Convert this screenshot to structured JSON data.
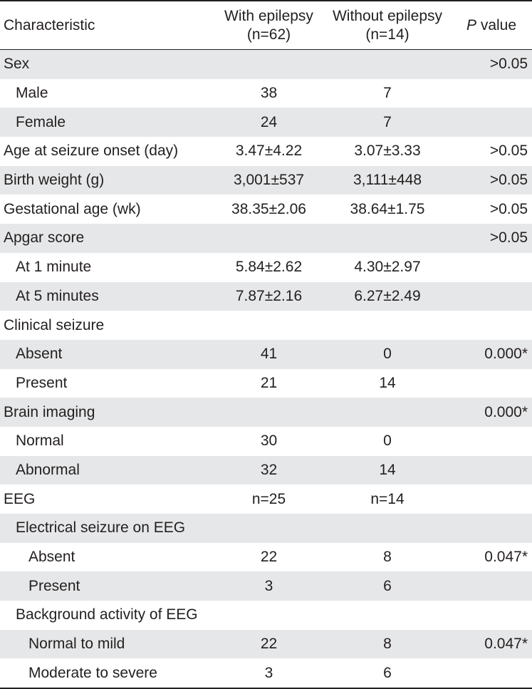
{
  "table": {
    "header": {
      "characteristic": "Characteristic",
      "with_epilepsy_line1": "With epilepsy",
      "with_epilepsy_line2": "(n=62)",
      "without_epilepsy_line1": "Without epilepsy",
      "without_epilepsy_line2": "(n=14)",
      "p_letter": "P",
      "p_suffix": " value"
    },
    "rows": [
      {
        "label": "Sex",
        "with": "",
        "without": "",
        "p": ">0.05",
        "indent": 0
      },
      {
        "label": "Male",
        "with": "38",
        "without": "7",
        "p": "",
        "indent": 1
      },
      {
        "label": "Female",
        "with": "24",
        "without": "7",
        "p": "",
        "indent": 1
      },
      {
        "label": "Age at seizure onset (day)",
        "with": "3.47±4.22",
        "without": "3.07±3.33",
        "p": ">0.05",
        "indent": 0
      },
      {
        "label": "Birth weight (g)",
        "with": "3,001±537",
        "without": "3,111±448",
        "p": ">0.05",
        "indent": 0
      },
      {
        "label": "Gestational age (wk)",
        "with": "38.35±2.06",
        "without": "38.64±1.75",
        "p": ">0.05",
        "indent": 0
      },
      {
        "label": "Apgar score",
        "with": "",
        "without": "",
        "p": ">0.05",
        "indent": 0
      },
      {
        "label": "At 1 minute",
        "with": "5.84±2.62",
        "without": "4.30±2.97",
        "p": "",
        "indent": 1
      },
      {
        "label": "At 5 minutes",
        "with": "7.87±2.16",
        "without": "6.27±2.49",
        "p": "",
        "indent": 1
      },
      {
        "label": "Clinical seizure",
        "with": "",
        "without": "",
        "p": "",
        "indent": 0
      },
      {
        "label": "Absent",
        "with": "41",
        "without": "0",
        "p": "0.000*",
        "indent": 1
      },
      {
        "label": "Present",
        "with": "21",
        "without": "14",
        "p": "",
        "indent": 1
      },
      {
        "label": "Brain imaging",
        "with": "",
        "without": "",
        "p": "0.000*",
        "indent": 0
      },
      {
        "label": "Normal",
        "with": "30",
        "without": "0",
        "p": "",
        "indent": 1
      },
      {
        "label": "Abnormal",
        "with": "32",
        "without": "14",
        "p": "",
        "indent": 1
      },
      {
        "label": "EEG",
        "with": "n=25",
        "without": "n=14",
        "p": "",
        "indent": 0
      },
      {
        "label": "Electrical seizure on EEG",
        "with": "",
        "without": "",
        "p": "",
        "indent": 1
      },
      {
        "label": "Absent",
        "with": "22",
        "without": "8",
        "p": "0.047*",
        "indent": 2
      },
      {
        "label": "Present",
        "with": "3",
        "without": "6",
        "p": "",
        "indent": 2
      },
      {
        "label": "Background activity of EEG",
        "with": "",
        "without": "",
        "p": "",
        "indent": 1
      },
      {
        "label": "Normal to mild",
        "with": "22",
        "without": "8",
        "p": "0.047*",
        "indent": 2
      },
      {
        "label": "Moderate to severe",
        "with": "3",
        "without": "6",
        "p": "",
        "indent": 2
      }
    ]
  }
}
